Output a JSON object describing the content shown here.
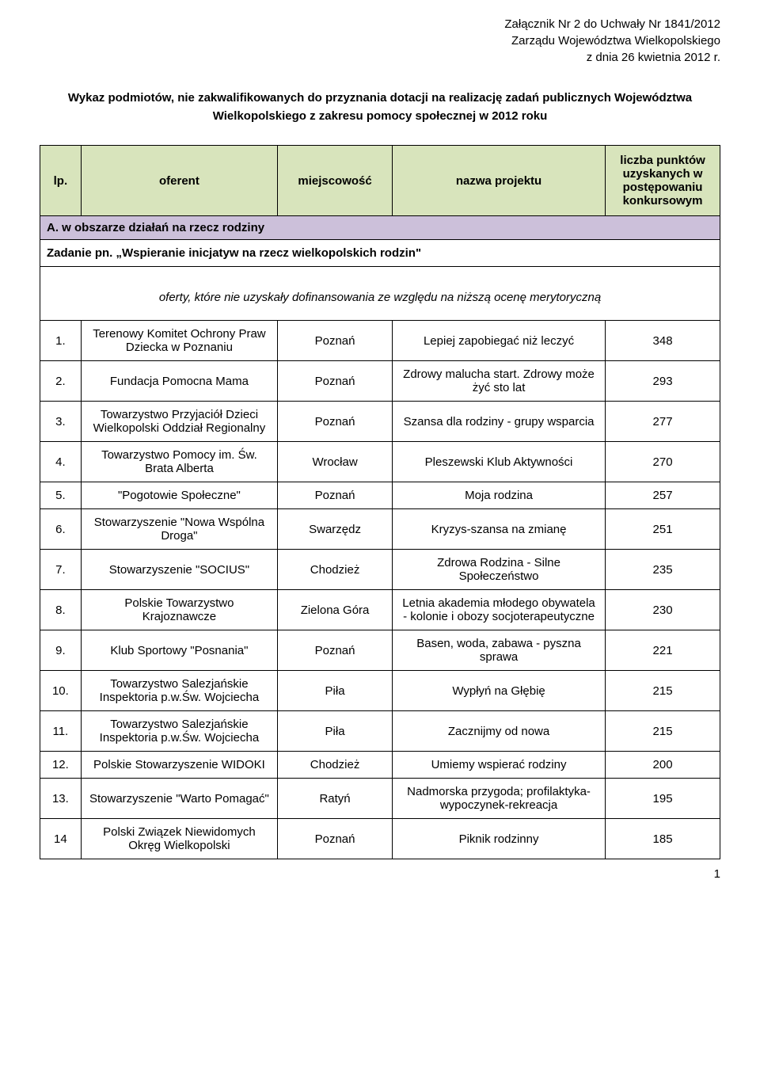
{
  "header": {
    "line1": "Załącznik Nr 2 do Uchwały Nr 1841/2012",
    "line2": "Zarządu Województwa Wielkopolskiego",
    "line3": "z dnia 26 kwietnia 2012 r."
  },
  "mainTitle": "Wykaz podmiotów, nie zakwalifikowanych do przyznania dotacji na realizację zadań publicznych Województwa Wielkopolskiego z zakresu pomocy społecznej w 2012 roku",
  "tableHeaders": {
    "col1": "lp.",
    "col2": "oferent",
    "col3": "miejscowość",
    "col4": "nazwa projektu",
    "col5": "liczba punktów uzyskanych w postępowaniu konkursowym"
  },
  "sectionA": "A. w obszarze działań na rzecz rodziny",
  "task": "Zadanie pn. „Wspieranie inicjatyw na rzecz wielkopolskich rodzin\"",
  "subheading": "oferty, które nie uzyskały dofinansowania ze względu na niższą ocenę merytoryczną",
  "rows": [
    {
      "lp": "1.",
      "oferent": "Terenowy Komitet Ochrony Praw Dziecka w Poznaniu",
      "miejscowosc": "Poznań",
      "projekt": "Lepiej zapobiegać niż leczyć",
      "punkty": "348"
    },
    {
      "lp": "2.",
      "oferent": "Fundacja Pomocna Mama",
      "miejscowosc": "Poznań",
      "projekt": "Zdrowy malucha start. Zdrowy może żyć sto lat",
      "punkty": "293"
    },
    {
      "lp": "3.",
      "oferent": "Towarzystwo Przyjaciół Dzieci Wielkopolski Oddział Regionalny",
      "miejscowosc": "Poznań",
      "projekt": "Szansa dla rodziny - grupy wsparcia",
      "punkty": "277"
    },
    {
      "lp": "4.",
      "oferent": "Towarzystwo Pomocy im. Św. Brata Alberta",
      "miejscowosc": "Wrocław",
      "projekt": "Pleszewski Klub Aktywności",
      "punkty": "270"
    },
    {
      "lp": "5.",
      "oferent": "\"Pogotowie Społeczne\"",
      "miejscowosc": "Poznań",
      "projekt": "Moja rodzina",
      "punkty": "257"
    },
    {
      "lp": "6.",
      "oferent": "Stowarzyszenie \"Nowa Wspólna Droga\"",
      "miejscowosc": "Swarzędz",
      "projekt": "Kryzys-szansa na zmianę",
      "punkty": "251"
    },
    {
      "lp": "7.",
      "oferent": "Stowarzyszenie \"SOCIUS\"",
      "miejscowosc": "Chodzież",
      "projekt": "Zdrowa Rodzina - Silne Społeczeństwo",
      "punkty": "235"
    },
    {
      "lp": "8.",
      "oferent": "Polskie Towarzystwo Krajoznawcze",
      "miejscowosc": "Zielona Góra",
      "projekt": "Letnia akademia młodego obywatela - kolonie i obozy socjoterapeutyczne",
      "punkty": "230"
    },
    {
      "lp": "9.",
      "oferent": "Klub Sportowy \"Posnania\"",
      "miejscowosc": "Poznań",
      "projekt": "Basen, woda, zabawa - pyszna sprawa",
      "punkty": "221"
    },
    {
      "lp": "10.",
      "oferent": "Towarzystwo Salezjańskie Inspektoria p.w.Św. Wojciecha",
      "miejscowosc": "Piła",
      "projekt": "Wypłyń na Głębię",
      "punkty": "215"
    },
    {
      "lp": "11.",
      "oferent": "Towarzystwo Salezjańskie Inspektoria p.w.Św. Wojciecha",
      "miejscowosc": "Piła",
      "projekt": "Zacznijmy od nowa",
      "punkty": "215"
    },
    {
      "lp": "12.",
      "oferent": "Polskie Stowarzyszenie WIDOKI",
      "miejscowosc": "Chodzież",
      "projekt": "Umiemy wspierać rodziny",
      "punkty": "200"
    },
    {
      "lp": "13.",
      "oferent": "Stowarzyszenie \"Warto Pomagać\"",
      "miejscowosc": "Ratyń",
      "projekt": "Nadmorska przygoda; profilaktyka-wypoczynek-rekreacja",
      "punkty": "195"
    },
    {
      "lp": "14",
      "oferent": "Polski Związek Niewidomych Okręg Wielkopolski",
      "miejscowosc": "Poznań",
      "projekt": "Piknik rodzinny",
      "punkty": "185"
    }
  ],
  "pageNumber": "1",
  "colors": {
    "headerBg": "#d8e4bc",
    "sectionBg": "#ccc0da",
    "border": "#000000",
    "text": "#000000",
    "pageBg": "#ffffff"
  }
}
